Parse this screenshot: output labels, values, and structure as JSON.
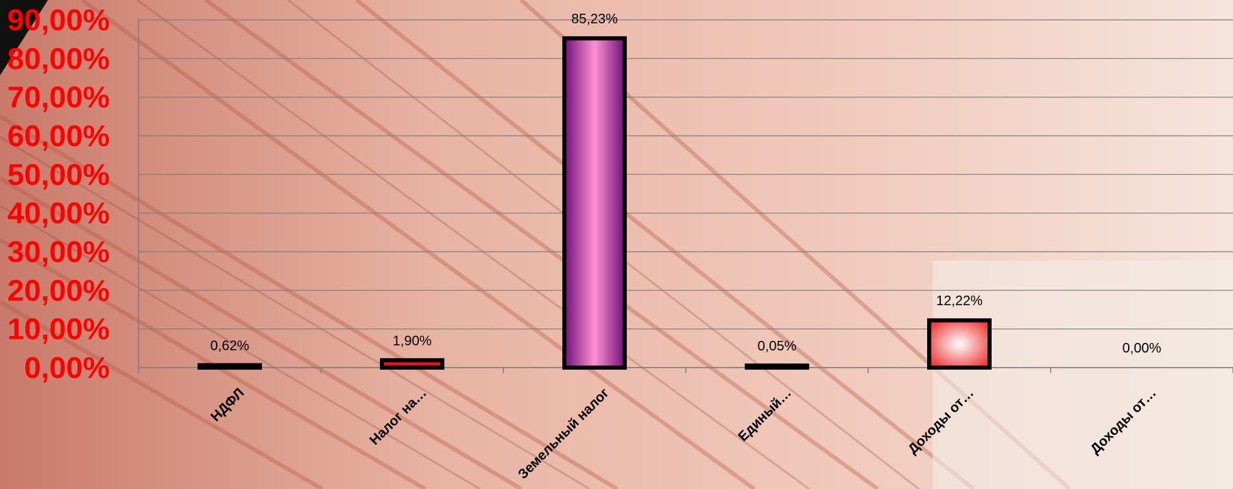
{
  "chart_data": {
    "type": "bar",
    "title": "",
    "xlabel": "",
    "ylabel": "",
    "ylim": [
      0,
      90
    ],
    "y_ticks": [
      "0,00%",
      "10,00%",
      "20,00%",
      "30,00%",
      "40,00%",
      "50,00%",
      "60,00%",
      "70,00%",
      "80,00%",
      "90,00%"
    ],
    "y_tick_color": "#ff0000",
    "grid": true,
    "categories": [
      "НДФЛ",
      "Налог на…",
      "Земельный налог",
      "Единый…",
      "Доходы от…",
      "Доходы от…"
    ],
    "values": [
      0.62,
      1.9,
      85.23,
      0.05,
      12.22,
      0.0
    ],
    "data_labels": [
      "0,62%",
      "1,90%",
      "85,23%",
      "0,05%",
      "12,22%",
      "0,00%"
    ],
    "bar_colors": [
      "#111111",
      "#e0161e",
      "#9b1fa0",
      "#222222",
      "#ff5a5a",
      "#000000"
    ]
  }
}
